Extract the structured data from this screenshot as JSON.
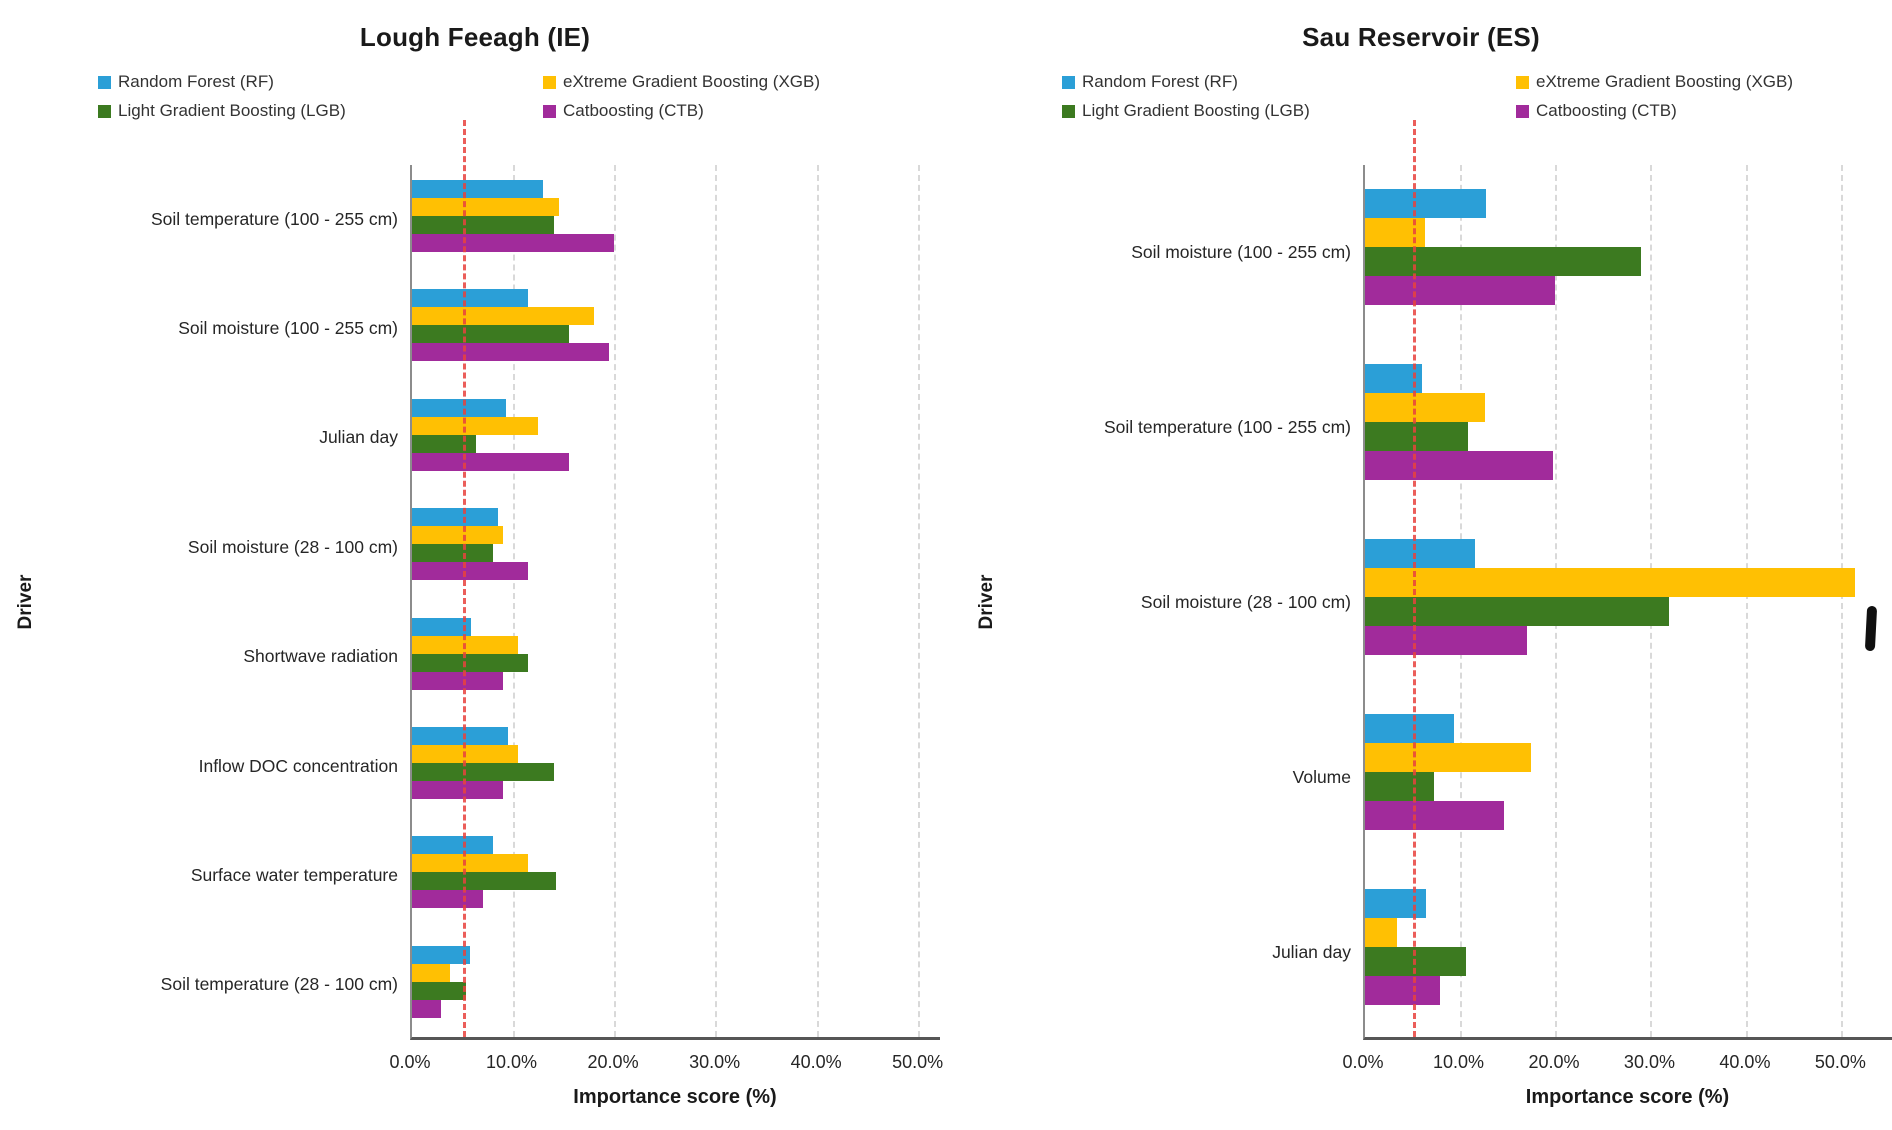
{
  "chart_data": [
    {
      "type": "bar",
      "orientation": "horizontal",
      "title": "Lough Feeagh (IE)",
      "xlabel": "Importance score (%)",
      "ylabel": "Driver",
      "xlim": [
        0,
        52.2
      ],
      "grid": "vertical-dashed",
      "legend_position": "top-two-columns",
      "ref_line": {
        "value": 5,
        "color": "#e8433e",
        "style": "dashed"
      },
      "x_ticks": [
        {
          "label": "0.0%",
          "value": 0
        },
        {
          "label": "10.0%",
          "value": 10
        },
        {
          "label": "20.0%",
          "value": 20
        },
        {
          "label": "30.0%",
          "value": 30
        },
        {
          "label": "40.0%",
          "value": 40
        },
        {
          "label": "50.0%",
          "value": 50
        }
      ],
      "categories": [
        "Soil temperature (100 - 255 cm)",
        "Soil moisture (100 - 255 cm)",
        "Julian day",
        "Soil moisture (28 - 100 cm)",
        "Shortwave radiation",
        "Inflow DOC concentration",
        "Surface water temperature",
        "Soil temperature (28 - 100 cm)"
      ],
      "series": [
        {
          "key": "rf",
          "name": "Random Forest (RF)",
          "color": "#2b9fd7",
          "values": [
            13.0,
            11.5,
            9.3,
            8.5,
            5.8,
            9.5,
            8.0,
            5.7
          ]
        },
        {
          "key": "xgb",
          "name": "eXtreme Gradient Boosting (XGB)",
          "color": "#ffc003",
          "values": [
            14.5,
            18.0,
            12.5,
            9.0,
            10.5,
            10.5,
            11.5,
            3.8
          ]
        },
        {
          "key": "lgb",
          "name": "Light Gradient Boosting (LGB)",
          "color": "#3c7a20",
          "values": [
            14.0,
            15.5,
            6.3,
            8.0,
            11.5,
            14.0,
            14.2,
            5.3
          ]
        },
        {
          "key": "ctb",
          "name": "Catboosting (CTB)",
          "color": "#a12b9b",
          "values": [
            20.0,
            19.5,
            15.5,
            11.5,
            9.0,
            9.0,
            7.0,
            2.9
          ]
        }
      ]
    },
    {
      "type": "bar",
      "orientation": "horizontal",
      "title": "Sau Reservoir (ES)",
      "xlabel": "Importance score (%)",
      "ylabel": "Driver",
      "xlim": [
        0,
        55.4
      ],
      "grid": "vertical-dashed",
      "legend_position": "top-two-columns",
      "ref_line": {
        "value": 5,
        "color": "#e8433e",
        "style": "dashed"
      },
      "x_ticks": [
        {
          "label": "0.0%",
          "value": 0
        },
        {
          "label": "10.0%",
          "value": 10
        },
        {
          "label": "20.0%",
          "value": 20
        },
        {
          "label": "30.0%",
          "value": 30
        },
        {
          "label": "40.0%",
          "value": 40
        },
        {
          "label": "50.0%",
          "value": 50
        }
      ],
      "categories": [
        "Soil moisture (100 - 255 cm)",
        "Soil temperature (100 - 255 cm)",
        "Soil moisture (28 - 100 cm)",
        "Volume",
        "Julian day"
      ],
      "series": [
        {
          "key": "rf",
          "name": "Random Forest (RF)",
          "color": "#2b9fd7",
          "values": [
            12.7,
            6.0,
            11.6,
            9.4,
            6.4
          ]
        },
        {
          "key": "xgb",
          "name": "eXtreme Gradient Boosting (XGB)",
          "color": "#ffc003",
          "values": [
            6.3,
            12.6,
            51.5,
            17.5,
            3.4
          ]
        },
        {
          "key": "lgb",
          "name": "Light Gradient Boosting (LGB)",
          "color": "#3c7a20",
          "values": [
            29.0,
            10.8,
            32.0,
            7.3,
            10.6
          ]
        },
        {
          "key": "ctb",
          "name": "Catboosting (CTB)",
          "color": "#a12b9b",
          "values": [
            20.0,
            19.8,
            17.0,
            14.6,
            7.9
          ]
        }
      ]
    }
  ]
}
